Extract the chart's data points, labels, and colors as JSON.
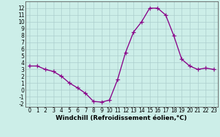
{
  "x": [
    0,
    1,
    2,
    3,
    4,
    5,
    6,
    7,
    8,
    9,
    10,
    11,
    12,
    13,
    14,
    15,
    16,
    17,
    18,
    19,
    20,
    21,
    22,
    23
  ],
  "y": [
    3.5,
    3.5,
    3.0,
    2.7,
    2.0,
    1.0,
    0.3,
    -0.5,
    -1.7,
    -1.8,
    -1.5,
    1.5,
    5.5,
    8.5,
    10.0,
    12.0,
    12.0,
    11.0,
    8.0,
    4.5,
    3.5,
    3.0,
    3.2,
    3.0
  ],
  "line_color": "#880088",
  "marker": "+",
  "markersize": 4,
  "linewidth": 1.0,
  "bg_color": "#cceee8",
  "grid_color": "#aacccc",
  "xlabel": "Windchill (Refroidissement éolien,°C)",
  "xlabel_fontsize": 6.5,
  "tick_fontsize": 5.5,
  "xlim": [
    -0.5,
    23.5
  ],
  "ylim": [
    -2.5,
    13.0
  ],
  "yticks": [
    -2,
    -1,
    0,
    1,
    2,
    3,
    4,
    5,
    6,
    7,
    8,
    9,
    10,
    11,
    12
  ],
  "xticks": [
    0,
    1,
    2,
    3,
    4,
    5,
    6,
    7,
    8,
    9,
    10,
    11,
    12,
    13,
    14,
    15,
    16,
    17,
    18,
    19,
    20,
    21,
    22,
    23
  ]
}
